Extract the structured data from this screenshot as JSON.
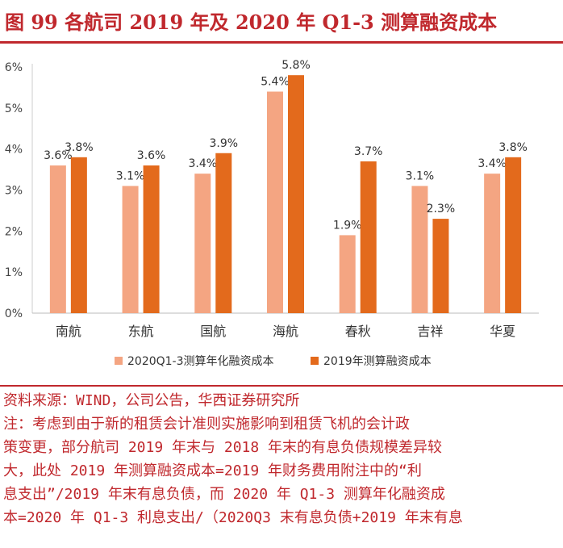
{
  "figure_title": "图 99 各航司 2019 年及 2020 年 Q1-3 测算融资成本",
  "chart_data": {
    "type": "bar",
    "categories": [
      "南航",
      "东航",
      "国航",
      "海航",
      "春秋",
      "吉祥",
      "华夏"
    ],
    "series": [
      {
        "name": "2020Q1-3测算年化融资成本",
        "values": [
          3.6,
          3.1,
          3.4,
          5.4,
          1.9,
          3.1,
          3.4
        ],
        "labels": [
          "3.6%",
          "3.1%",
          "3.4%",
          "5.4%",
          "1.9%",
          "3.1%",
          "3.4%"
        ],
        "color": "#f4a582"
      },
      {
        "name": "2019年测算融资成本",
        "values": [
          3.8,
          3.6,
          3.9,
          5.8,
          3.7,
          2.3,
          3.8
        ],
        "labels": [
          "3.8%",
          "3.6%",
          "3.9%",
          "5.8%",
          "3.7%",
          "2.3%",
          "3.8%"
        ],
        "color": "#e36a1c"
      }
    ],
    "yticks": [
      0,
      1,
      2,
      3,
      4,
      5,
      6
    ],
    "ytick_labels": [
      "0%",
      "1%",
      "2%",
      "3%",
      "4%",
      "5%",
      "6%"
    ],
    "ylim": [
      0,
      6
    ],
    "legend_position": "bottom"
  },
  "source": "资料来源：WIND，公司公告，华西证券研究所",
  "notes": [
    "注：考虑到由于新的租赁会计准则实施影响到租赁飞机的会计政",
    "策变更，部分航司 2019 年末与 2018 年末的有息负债规模差异较",
    "大，此处 2019 年测算融资成本=2019 年财务费用附注中的“利",
    "息支出”/2019 年末有息负债，而 2020 年 Q1-3 测算年化融资成",
    "本=2020 年 Q1-3 利息支出/（2020Q3 末有息负债+2019 年末有息"
  ]
}
